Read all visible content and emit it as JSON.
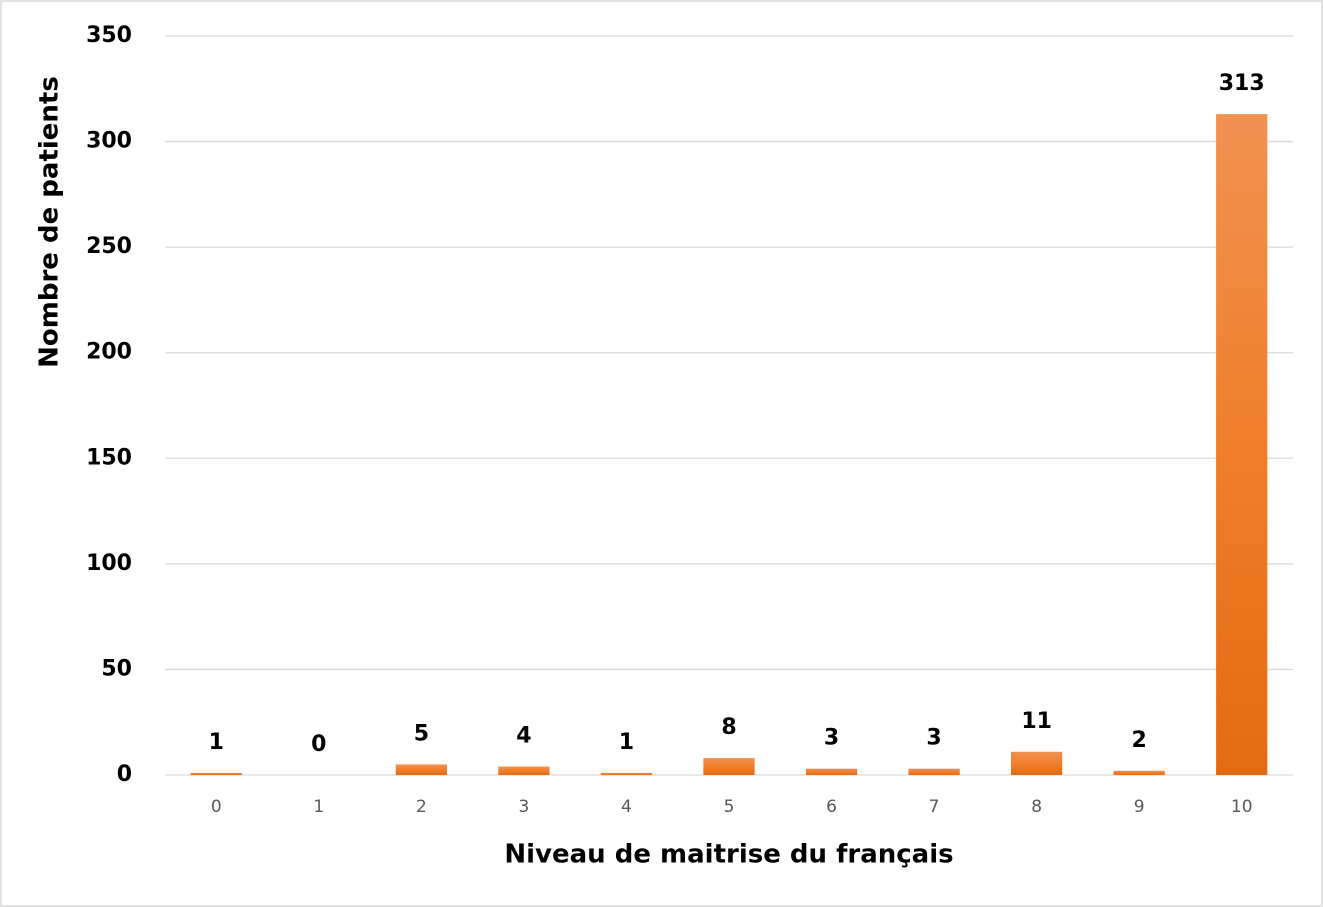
{
  "chart_data": {
    "type": "bar",
    "xlabel": "Niveau de maitrise du français",
    "ylabel": "Nombre de patients",
    "categories": [
      "0",
      "1",
      "2",
      "3",
      "4",
      "5",
      "6",
      "7",
      "8",
      "9",
      "10"
    ],
    "values": [
      1,
      0,
      5,
      4,
      1,
      8,
      3,
      3,
      11,
      2,
      313
    ],
    "color": "#ed7d31",
    "ylim": [
      0,
      350
    ],
    "yticks": [
      0,
      50,
      100,
      150,
      200,
      250,
      300,
      350
    ],
    "grid": true
  }
}
